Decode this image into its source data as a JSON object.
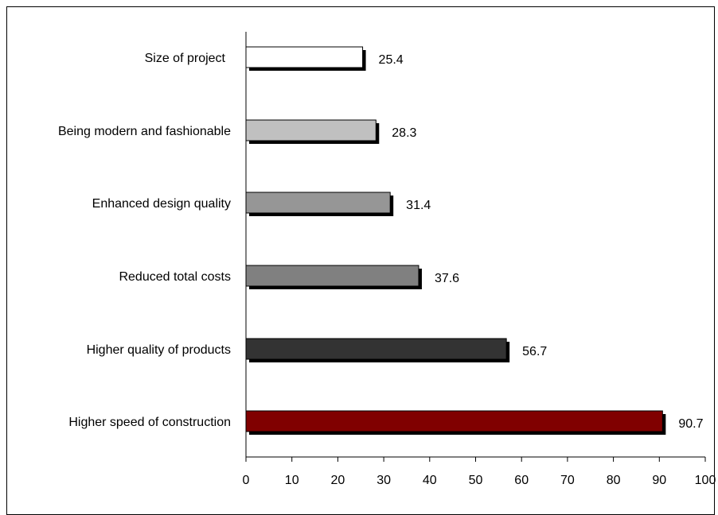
{
  "chart_data": {
    "type": "bar",
    "orientation": "horizontal",
    "categories": [
      "Size of project",
      "Being modern and fashionable",
      "Enhanced design quality",
      "Reduced total costs",
      "Higher quality of products",
      "Higher speed of construction"
    ],
    "values": [
      25.4,
      28.3,
      31.4,
      37.6,
      56.7,
      90.7
    ],
    "value_labels": [
      "25.4",
      "28.3",
      "31.4",
      "37.6",
      "56.7",
      "90.7"
    ],
    "bar_colors": [
      "#ffffff",
      "#c0c0c0",
      "#969696",
      "#808080",
      "#333333",
      "#800000"
    ],
    "xlim": [
      0,
      100
    ],
    "xticks": [
      0,
      10,
      20,
      30,
      40,
      50,
      60,
      70,
      80,
      90,
      100
    ],
    "xtick_labels": [
      "0",
      "10",
      "20",
      "30",
      "40",
      "50",
      "60",
      "70",
      "80",
      "90",
      "100"
    ],
    "title": "",
    "xlabel": "",
    "ylabel": "",
    "grid": false,
    "legend": "none"
  }
}
